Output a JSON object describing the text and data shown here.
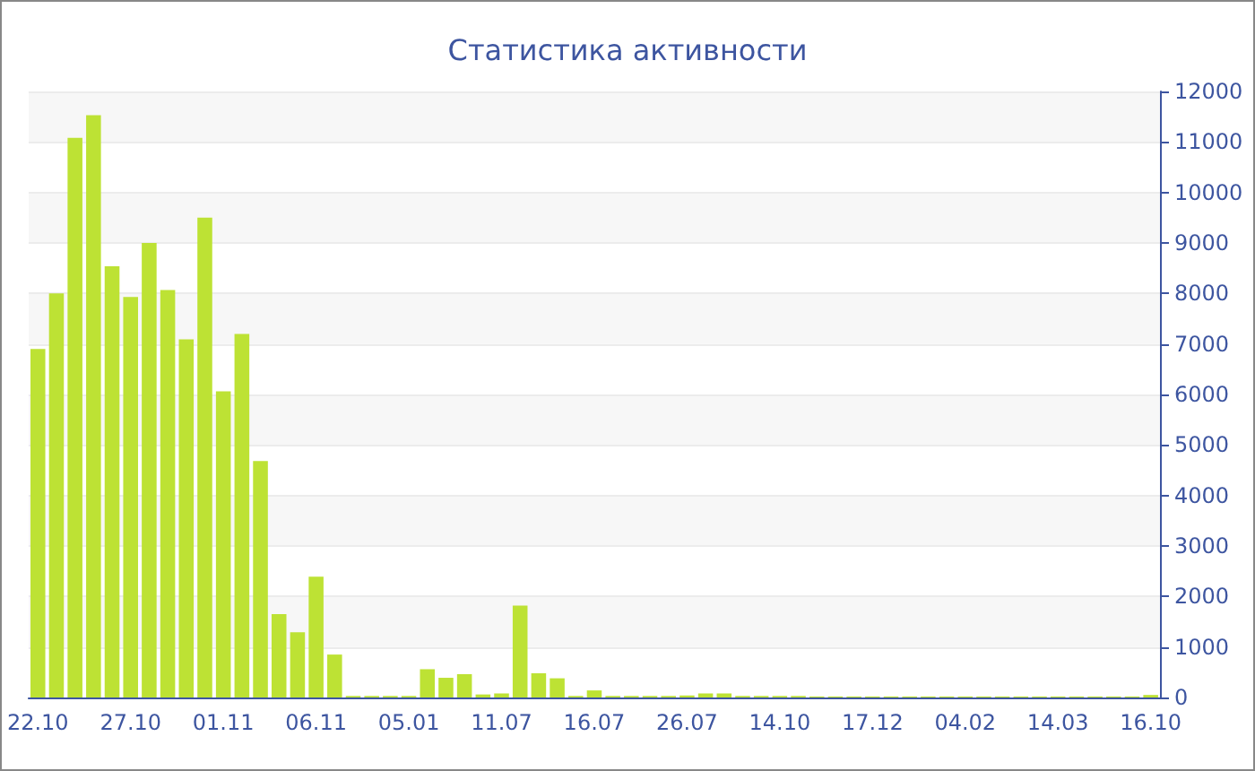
{
  "chart_data": {
    "type": "bar",
    "title": "Статистика активности",
    "categories": [
      "22.10",
      null,
      null,
      null,
      null,
      "27.10",
      null,
      null,
      null,
      null,
      "01.11",
      null,
      null,
      null,
      null,
      "06.11",
      null,
      null,
      null,
      null,
      "05.01",
      null,
      null,
      null,
      null,
      "11.07",
      null,
      null,
      null,
      null,
      "16.07",
      null,
      null,
      null,
      null,
      "26.07",
      null,
      null,
      null,
      null,
      "14.10",
      null,
      null,
      null,
      null,
      "17.12",
      null,
      null,
      null,
      null,
      "04.02",
      null,
      null,
      null,
      null,
      "14.03",
      null,
      null,
      null,
      null,
      "16.10"
    ],
    "values": [
      6900,
      8000,
      11080,
      11530,
      8540,
      7930,
      9000,
      8070,
      7090,
      9500,
      6060,
      7200,
      4680,
      1650,
      1290,
      2390,
      850,
      30,
      30,
      30,
      30,
      560,
      390,
      460,
      60,
      80,
      1820,
      480,
      380,
      30,
      140,
      30,
      30,
      30,
      30,
      40,
      80,
      80,
      30,
      30,
      30,
      30,
      20,
      20,
      20,
      20,
      20,
      20,
      20,
      20,
      20,
      20,
      20,
      20,
      20,
      20,
      20,
      20,
      20,
      20,
      50
    ],
    "color": "#bde234",
    "ylim": [
      0,
      12000
    ],
    "yticks": [
      0,
      1000,
      2000,
      3000,
      4000,
      5000,
      6000,
      7000,
      8000,
      9000,
      10000,
      11000,
      12000
    ],
    "grid": "y"
  }
}
